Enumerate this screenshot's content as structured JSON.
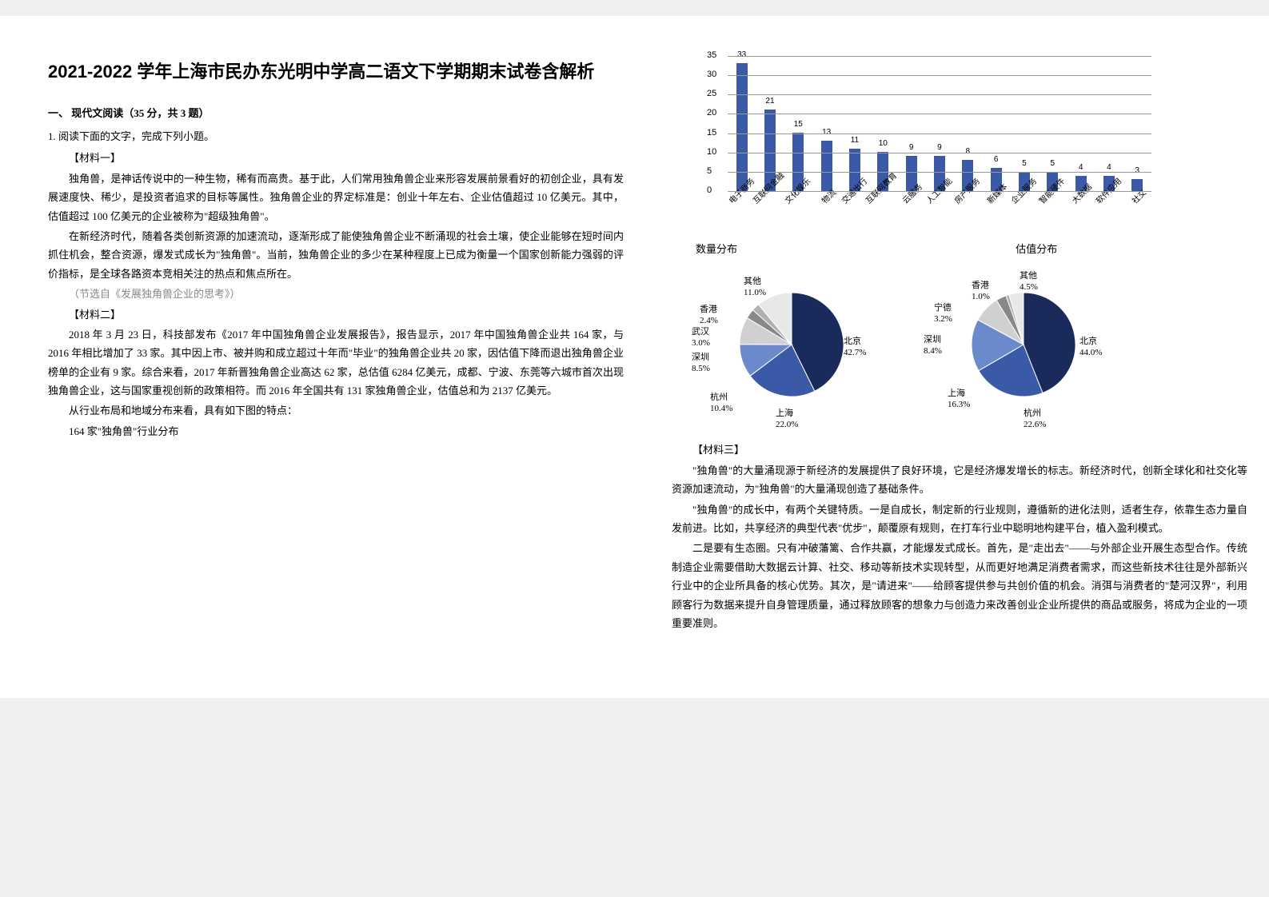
{
  "title": "2021-2022 学年上海市民办东光明中学高二语文下学期期末试卷含解析",
  "section1": "一、 现代文阅读（35 分，共 3 题）",
  "q1": "1. 阅读下面的文字，完成下列小题。",
  "m1": "【材料一】",
  "m1p1": "独角兽，是神话传说中的一种生物，稀有而高贵。基于此，人们常用独角兽企业来形容发展前景看好的初创企业，具有发展速度快、稀少，是投资者追求的目标等属性。独角兽企业的界定标准是：创业十年左右、企业估值超过 10 亿美元。其中，估值超过 100 亿美元的企业被称为\"超级独角兽\"。",
  "m1p2": "在新经济时代，随着各类创新资源的加速流动，逐渐形成了能使独角兽企业不断涌现的社会土壤，使企业能够在短时间内抓住机会，整合资源，爆发式成长为\"独角兽\"。当前，独角兽企业的多少在某种程度上已成为衡量一个国家创新能力强弱的评价指标，是全球各路资本竞相关注的热点和焦点所在。",
  "m1src": "（节选自《发展独角兽企业的思考》）",
  "m2": "【材料二】",
  "m2p1": "2018 年 3 月 23 日，科技部发布《2017 年中国独角兽企业发展报告》，报告显示，2017 年中国独角兽企业共 164 家，与 2016 年相比增加了 33 家。其中因上市、被并购和成立超过十年而\"毕业\"的独角兽企业共 20 家，因估值下降而退出独角兽企业榜单的企业有 9 家。综合来看，2017 年新晋独角兽企业高达 62 家，总估值 6284 亿美元，成都、宁波、东莞等六城市首次出现独角兽企业，这与国家重视创新的政策相符。而 2016 年全国共有 131 家独角兽企业，估值总和为 2137 亿美元。",
  "m2p2": "从行业布局和地域分布来看，具有如下图的特点：",
  "m2p3": "164 家\"独角兽\"行业分布",
  "bar_chart": {
    "ylim": [
      0,
      35
    ],
    "ytick_step": 5,
    "bar_color": "#3a5aa8",
    "grid_color": "#999999",
    "categories": [
      "电子商务",
      "互联网金融",
      "文化娱乐",
      "物流",
      "交通出行",
      "互联网教育",
      "云服务",
      "人工智能",
      "房产服务",
      "新媒体",
      "企业服务",
      "智能硬件",
      "大数据",
      "软件应用",
      "社交"
    ],
    "values": [
      33,
      21,
      15,
      13,
      11,
      10,
      9,
      9,
      8,
      6,
      5,
      5,
      4,
      4,
      3
    ]
  },
  "dist_label_left": "数量分布",
  "dist_label_right": "估值分布",
  "pie_left": {
    "slices": [
      {
        "label": "北京",
        "value": 42.7,
        "color": "#1a2a5a"
      },
      {
        "label": "上海",
        "value": 22.0,
        "color": "#3a5aa8"
      },
      {
        "label": "杭州",
        "value": 10.4,
        "color": "#6a8acc"
      },
      {
        "label": "深圳",
        "value": 8.5,
        "color": "#d0d0d0"
      },
      {
        "label": "武汉",
        "value": 3.0,
        "color": "#888888"
      },
      {
        "label": "香港",
        "value": 2.4,
        "color": "#b0b0b0"
      },
      {
        "label": "其他",
        "value": 11.0,
        "color": "#e8e8e8"
      }
    ]
  },
  "pie_right": {
    "slices": [
      {
        "label": "北京",
        "value": 44.0,
        "color": "#1a2a5a"
      },
      {
        "label": "杭州",
        "value": 22.6,
        "color": "#3a5aa8"
      },
      {
        "label": "上海",
        "value": 16.3,
        "color": "#6a8acc"
      },
      {
        "label": "深圳",
        "value": 8.4,
        "color": "#d0d0d0"
      },
      {
        "label": "宁德",
        "value": 3.2,
        "color": "#888888"
      },
      {
        "label": "香港",
        "value": 1.0,
        "color": "#b0b0b0"
      },
      {
        "label": "其他",
        "value": 4.5,
        "color": "#e8e8e8"
      }
    ]
  },
  "m3": "【材料三】",
  "m3p1": "\"独角兽\"的大量涌现源于新经济的发展提供了良好环境，它是经济爆发增长的标志。新经济时代，创新全球化和社交化等资源加速流动，为\"独角兽\"的大量涌现创造了基础条件。",
  "m3p2": "\"独角兽\"的成长中，有两个关键特质。一是自成长，制定新的行业规则，遵循新的进化法则，适者生存，依靠生态力量自发前进。比如，共享经济的典型代表\"优步\"，颠覆原有规则，在打车行业中聪明地构建平台，植入盈利模式。",
  "m3p3": "二是要有生态圈。只有冲破藩篱、合作共赢，才能爆发式成长。首先，是\"走出去\"——与外部企业开展生态型合作。传统制造企业需要借助大数据云计算、社交、移动等新技术实现转型，从而更好地满足消费者需求，而这些新技术往往是外部新兴行业中的企业所具备的核心优势。其次，是\"请进来\"——给顾客提供参与共创价值的机会。消弭与消费者的\"楚河汉界\"，利用顾客行为数据来提升自身管理质量，通过释放顾客的想象力与创造力来改善创业企业所提供的商品或服务，将成为企业的一项重要准则。"
}
